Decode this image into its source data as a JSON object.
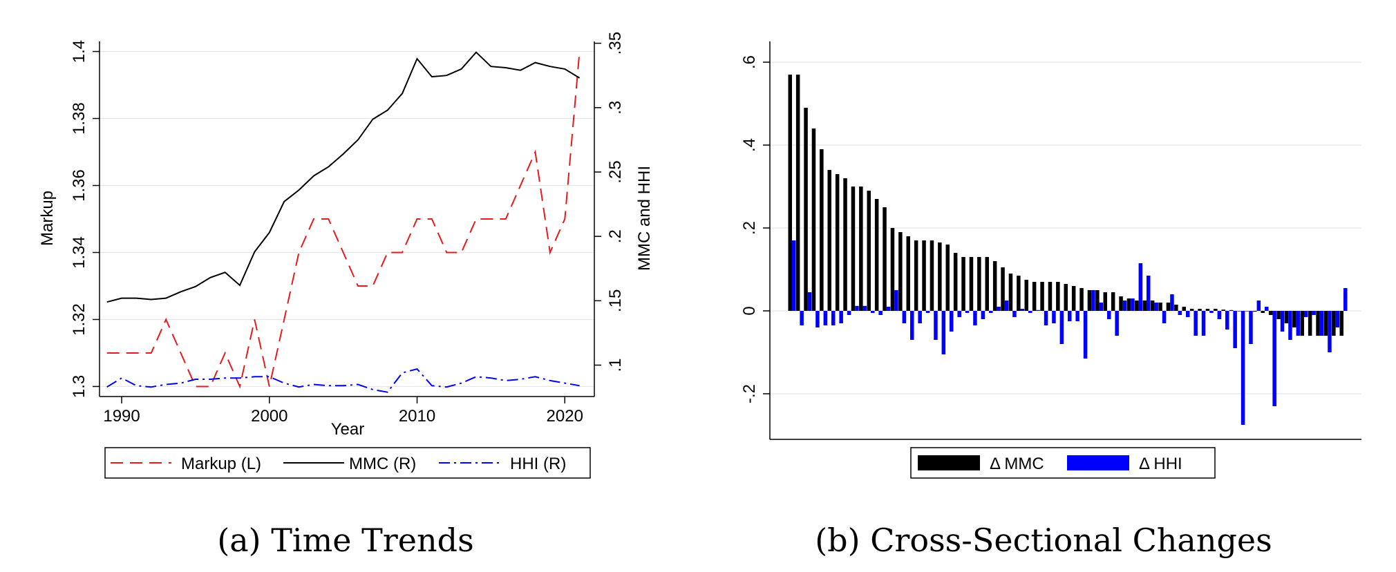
{
  "panels": {
    "a": {
      "caption": "(a) Time Trends"
    },
    "b": {
      "caption": "(b) Cross-Sectional Changes"
    }
  },
  "chart_data": [
    {
      "type": "line",
      "xlabel": "Year",
      "ylabel_left": "Markup",
      "ylabel_right": "MMC and HHI",
      "xlim": [
        1988.5,
        2022
      ],
      "ylim_left": [
        1.297,
        1.403
      ],
      "ylim_right": [
        0.0756,
        0.3514
      ],
      "xticks": [
        1990,
        2000,
        2010,
        2020
      ],
      "yticks_left": [
        1.3,
        1.32,
        1.34,
        1.36,
        1.38,
        1.4
      ],
      "yticks_left_labels": [
        "1.3",
        "1.32",
        "1.34",
        "1.36",
        "1.38",
        "1.4"
      ],
      "yticks_right": [
        0.1,
        0.15,
        0.2,
        0.25,
        0.3,
        0.35
      ],
      "yticks_right_labels": [
        ".1",
        ".15",
        ".2",
        ".25",
        ".3",
        ".35"
      ],
      "grid": true,
      "legend_position": "bottom",
      "x": [
        1989,
        1990,
        1991,
        1992,
        1993,
        1994,
        1995,
        1996,
        1997,
        1998,
        1999,
        2000,
        2001,
        2002,
        2003,
        2004,
        2005,
        2006,
        2007,
        2008,
        2009,
        2010,
        2011,
        2012,
        2013,
        2014,
        2015,
        2016,
        2017,
        2018,
        2019,
        2020,
        2021
      ],
      "series": [
        {
          "name": "Markup (L)",
          "axis": "left",
          "color": "#e41a1c",
          "style": "dashed",
          "values": [
            1.31,
            1.31,
            1.31,
            1.31,
            1.32,
            1.31,
            1.3,
            1.3,
            1.31,
            1.3,
            1.32,
            1.3,
            1.32,
            1.34,
            1.35,
            1.35,
            1.34,
            1.33,
            1.33,
            1.34,
            1.34,
            1.35,
            1.35,
            1.34,
            1.34,
            1.35,
            1.35,
            1.35,
            1.36,
            1.37,
            1.34,
            1.35,
            1.4
          ]
        },
        {
          "name": "MMC (R)",
          "axis": "right",
          "color": "#000000",
          "style": "solid",
          "values": [
            0.149,
            0.152,
            0.152,
            0.151,
            0.152,
            0.157,
            0.161,
            0.168,
            0.172,
            0.162,
            0.188,
            0.203,
            0.227,
            0.236,
            0.247,
            0.254,
            0.264,
            0.275,
            0.291,
            0.298,
            0.311,
            0.338,
            0.324,
            0.325,
            0.33,
            0.343,
            0.332,
            0.331,
            0.329,
            0.335,
            0.332,
            0.33,
            0.323
          ]
        },
        {
          "name": "HHI (R)",
          "axis": "right",
          "color": "#0000ff",
          "style": "dashdot",
          "values": [
            0.083,
            0.09,
            0.084,
            0.083,
            0.085,
            0.086,
            0.089,
            0.089,
            0.09,
            0.09,
            0.091,
            0.091,
            0.086,
            0.083,
            0.085,
            0.084,
            0.084,
            0.085,
            0.081,
            0.079,
            0.094,
            0.097,
            0.084,
            0.083,
            0.086,
            0.091,
            0.09,
            0.088,
            0.089,
            0.091,
            0.088,
            0.086,
            0.084
          ]
        }
      ]
    },
    {
      "type": "bar",
      "xlabel": "",
      "ylabel": "",
      "ylim": [
        -0.31,
        0.65
      ],
      "yticks": [
        -0.2,
        0,
        0.2,
        0.4,
        0.6
      ],
      "yticks_labels": [
        "-.2",
        "0",
        ".2",
        ".4",
        ".6"
      ],
      "grid": true,
      "legend_position": "bottom",
      "series": [
        {
          "name": "Δ MMC",
          "color": "#000000",
          "values": [
            0.57,
            0.57,
            0.49,
            0.44,
            0.39,
            0.34,
            0.33,
            0.32,
            0.3,
            0.3,
            0.29,
            0.27,
            0.25,
            0.2,
            0.19,
            0.18,
            0.17,
            0.17,
            0.17,
            0.165,
            0.16,
            0.14,
            0.13,
            0.13,
            0.13,
            0.13,
            0.12,
            0.105,
            0.09,
            0.085,
            0.075,
            0.07,
            0.07,
            0.07,
            0.07,
            0.065,
            0.06,
            0.055,
            0.05,
            0.05,
            0.045,
            0.045,
            0.035,
            0.03,
            0.025,
            0.025,
            0.025,
            0.02,
            0.02,
            0.015,
            0.01,
            0.005,
            0.005,
            0.005,
            0.005,
            0.003,
            0.002,
            0.0,
            0.0,
            -0.002,
            -0.005,
            -0.01,
            -0.02,
            -0.03,
            -0.04,
            -0.06,
            -0.06,
            -0.06,
            -0.06,
            -0.06,
            -0.06
          ]
        },
        {
          "name": "Δ HHI",
          "color": "#0000ff",
          "values": [
            0.17,
            -0.035,
            0.045,
            -0.04,
            -0.035,
            -0.035,
            -0.03,
            -0.01,
            0.012,
            0.012,
            -0.005,
            -0.01,
            0.01,
            0.05,
            -0.03,
            -0.07,
            -0.03,
            -0.005,
            -0.07,
            -0.105,
            -0.05,
            -0.015,
            -0.005,
            -0.035,
            -0.02,
            -0.005,
            0.01,
            0.025,
            -0.015,
            0.005,
            -0.005,
            0.002,
            -0.035,
            -0.03,
            -0.08,
            -0.025,
            -0.025,
            -0.115,
            0.05,
            0.02,
            -0.02,
            -0.06,
            0.025,
            0.03,
            0.115,
            0.085,
            0.02,
            -0.03,
            0.04,
            -0.01,
            -0.015,
            -0.06,
            -0.06,
            -0.005,
            -0.02,
            -0.045,
            -0.09,
            -0.275,
            -0.08,
            0.025,
            0.01,
            -0.23,
            -0.05,
            -0.07,
            -0.06,
            -0.015,
            -0.01,
            -0.06,
            -0.1,
            -0.04,
            0.055
          ]
        }
      ]
    }
  ]
}
